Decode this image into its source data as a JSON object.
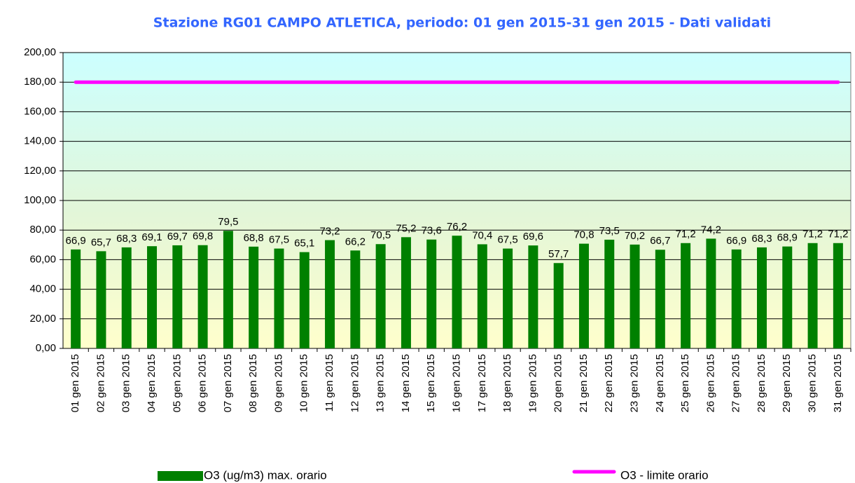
{
  "chart_data": {
    "type": "bar",
    "title": "Stazione RG01 CAMPO ATLETICA, periodo: 01 gen 2015-31 gen 2015 - Dati validati",
    "categories": [
      "01 gen 2015",
      "02 gen 2015",
      "03 gen 2015",
      "04 gen 2015",
      "05 gen 2015",
      "06 gen 2015",
      "07 gen 2015",
      "08 gen 2015",
      "09 gen 2015",
      "10 gen 2015",
      "11 gen 2015",
      "12 gen 2015",
      "13 gen 2015",
      "14 gen 2015",
      "15 gen 2015",
      "16 gen 2015",
      "17 gen 2015",
      "18 gen 2015",
      "19 gen 2015",
      "20 gen 2015",
      "21 gen 2015",
      "22 gen 2015",
      "23 gen 2015",
      "24 gen 2015",
      "25 gen 2015",
      "26 gen 2015",
      "27 gen 2015",
      "28 gen 2015",
      "29 gen 2015",
      "30 gen 2015",
      "31 gen 2015"
    ],
    "series": [
      {
        "name": "O3 (ug/m3) max. orario",
        "type": "bar",
        "color": "#008000",
        "values": [
          66.9,
          65.7,
          68.3,
          69.1,
          69.7,
          69.8,
          79.5,
          68.8,
          67.5,
          65.1,
          73.2,
          66.2,
          70.5,
          75.2,
          73.6,
          76.2,
          70.4,
          67.5,
          69.6,
          57.7,
          70.8,
          73.5,
          70.2,
          66.7,
          71.2,
          74.2,
          66.9,
          68.3,
          68.9,
          71.2,
          71.2
        ],
        "value_labels": [
          "66,9",
          "65,7",
          "68,3",
          "69,1",
          "69,7",
          "69,8",
          "79,5",
          "68,8",
          "67,5",
          "65,1",
          "73,2",
          "66,2",
          "70,5",
          "75,2",
          "73,6",
          "76,2",
          "70,4",
          "67,5",
          "69,6",
          "57,7",
          "70,8",
          "73,5",
          "70,2",
          "66,7",
          "71,2",
          "74,2",
          "66,9",
          "68,3",
          "68,9",
          "71,2",
          "71,2"
        ]
      },
      {
        "name": "O3 - limite orario",
        "type": "line",
        "color": "#ff00ff",
        "values": [
          180,
          180,
          180,
          180,
          180,
          180,
          180,
          180,
          180,
          180,
          180,
          180,
          180,
          180,
          180,
          180,
          180,
          180,
          180,
          180,
          180,
          180,
          180,
          180,
          180,
          180,
          180,
          180,
          180,
          180,
          180
        ]
      }
    ],
    "ylim": [
      0,
      200
    ],
    "yticks": [
      {
        "value": 0,
        "label": "0,00"
      },
      {
        "value": 20,
        "label": "20,00"
      },
      {
        "value": 40,
        "label": "40,00"
      },
      {
        "value": 60,
        "label": "60,00"
      },
      {
        "value": 80,
        "label": "80,00"
      },
      {
        "value": 100,
        "label": "100,00"
      },
      {
        "value": 120,
        "label": "120,00"
      },
      {
        "value": 140,
        "label": "140,00"
      },
      {
        "value": 160,
        "label": "160,00"
      },
      {
        "value": 180,
        "label": "180,00"
      },
      {
        "value": 200,
        "label": "200,00"
      }
    ],
    "grid": true,
    "legend": "bottom"
  }
}
